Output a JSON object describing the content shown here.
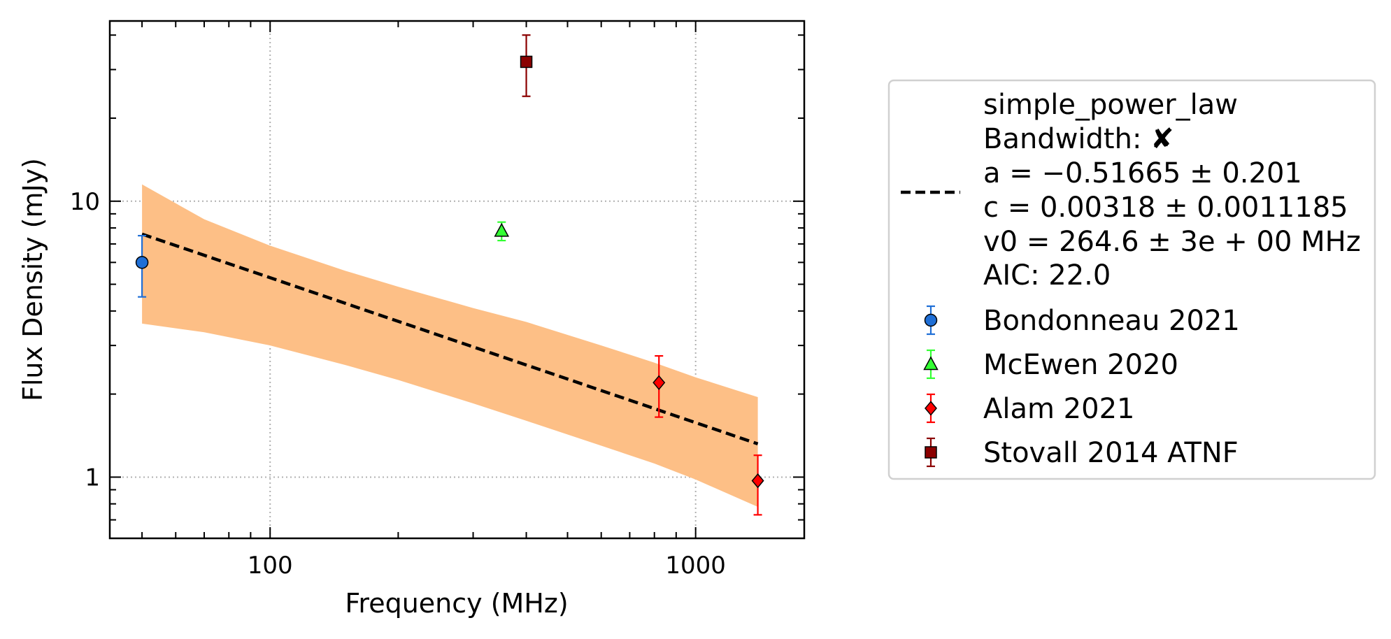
{
  "chart_data": {
    "type": "scatter",
    "xlabel": "Frequency (MHz)",
    "ylabel": "Flux Density (mJy)",
    "xscale": "log",
    "yscale": "log",
    "xlim": [
      42,
      1800
    ],
    "ylim": [
      0.6,
      45
    ],
    "grid": "major dotted",
    "legend_placement": "outside right",
    "x_ticks": [
      {
        "value": 100,
        "label": "100"
      },
      {
        "value": 1000,
        "label": "1000"
      }
    ],
    "y_ticks": [
      {
        "value": 1,
        "label": "1"
      },
      {
        "value": 10,
        "label": "10"
      }
    ],
    "fit": {
      "model": "simple_power_law",
      "bandwidth_label": "Bandwidth: ✘",
      "a_label": "a = −0.51665 ± 0.201",
      "c_label": "c = 0.00318 ± 0.0011185",
      "v0_label": "v0 = 264.6 ± 3e + 00 MHz",
      "aic_label": "AIC: 22.0",
      "v0": 264.6,
      "a": -0.51665,
      "c": 0.00318,
      "line_x": [
        50,
        1400
      ],
      "line_y": [
        7.6,
        1.32
      ],
      "band_x": [
        50,
        70,
        100,
        150,
        200,
        300,
        400,
        600,
        800,
        1000,
        1400
      ],
      "band_upper": [
        11.5,
        8.6,
        6.9,
        5.6,
        4.9,
        4.1,
        3.65,
        3.0,
        2.6,
        2.3,
        1.95
      ],
      "band_lower": [
        3.6,
        3.35,
        3.0,
        2.55,
        2.25,
        1.85,
        1.6,
        1.3,
        1.12,
        0.98,
        0.78
      ],
      "line_color": "#000000",
      "band_color": "#fdbf86"
    },
    "series": [
      {
        "name": "Bondonneau 2021",
        "marker": "circle",
        "color": "#1f6fd6",
        "err_color": "#1f6fd6",
        "points": [
          {
            "x": 50,
            "y": 6.0,
            "ylo": 4.5,
            "yhi": 7.5
          }
        ]
      },
      {
        "name": "McEwen 2020",
        "marker": "triangle",
        "color": "#33ff33",
        "err_color": "#33ff33",
        "points": [
          {
            "x": 350,
            "y": 7.8,
            "ylo": 7.2,
            "yhi": 8.4
          }
        ]
      },
      {
        "name": "Alam 2021",
        "marker": "diamond",
        "color": "#ff0000",
        "err_color": "#ff0000",
        "points": [
          {
            "x": 820,
            "y": 2.2,
            "ylo": 1.65,
            "yhi": 2.75
          },
          {
            "x": 1400,
            "y": 0.97,
            "ylo": 0.73,
            "yhi": 1.2
          }
        ]
      },
      {
        "name": "Stovall 2014 ATNF",
        "marker": "square",
        "color": "#8b0000",
        "err_color": "#8b0000",
        "points": [
          {
            "x": 400,
            "y": 32,
            "ylo": 24,
            "yhi": 40
          }
        ]
      }
    ]
  }
}
